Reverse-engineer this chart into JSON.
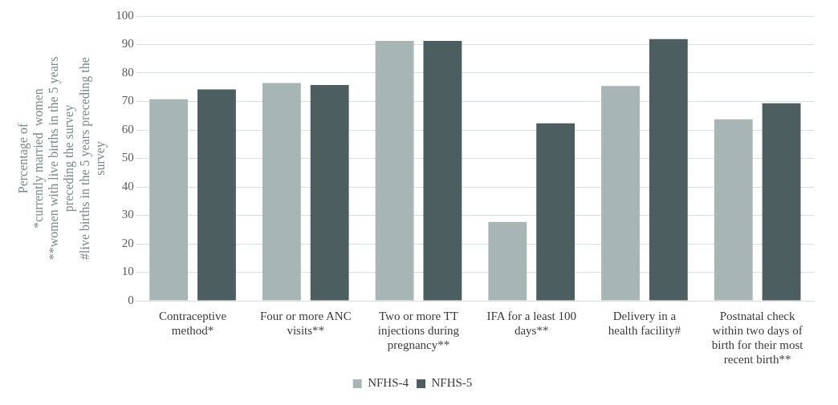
{
  "chart_data": {
    "type": "bar",
    "ylabel": "Percentage of\n*currently married  women\n**women with live births in the 5 years preceding the survey\n#live births in the 5 years preceding the survey",
    "categories": [
      "Contraceptive method*",
      "Four or more ANC visits**",
      "Two or more TT injections during pregnancy**",
      "IFA for a least 100 days**",
      "Delivery in a health facility#",
      "Postnatal check within two days of birth for their most recent birth**"
    ],
    "series": [
      {
        "name": "NFHS-4",
        "color": "#a7b5b5",
        "values": [
          70.8,
          76.5,
          91.3,
          27.7,
          75.4,
          63.7
        ]
      },
      {
        "name": "NFHS-5",
        "color": "#4d5e60",
        "values": [
          74.2,
          75.8,
          91.3,
          62.3,
          91.9,
          69.4
        ]
      }
    ],
    "ylim": [
      0,
      100
    ],
    "yticks": [
      0,
      10,
      20,
      30,
      40,
      50,
      60,
      70,
      80,
      90,
      100
    ],
    "grid": "y",
    "legend": "bottom"
  }
}
